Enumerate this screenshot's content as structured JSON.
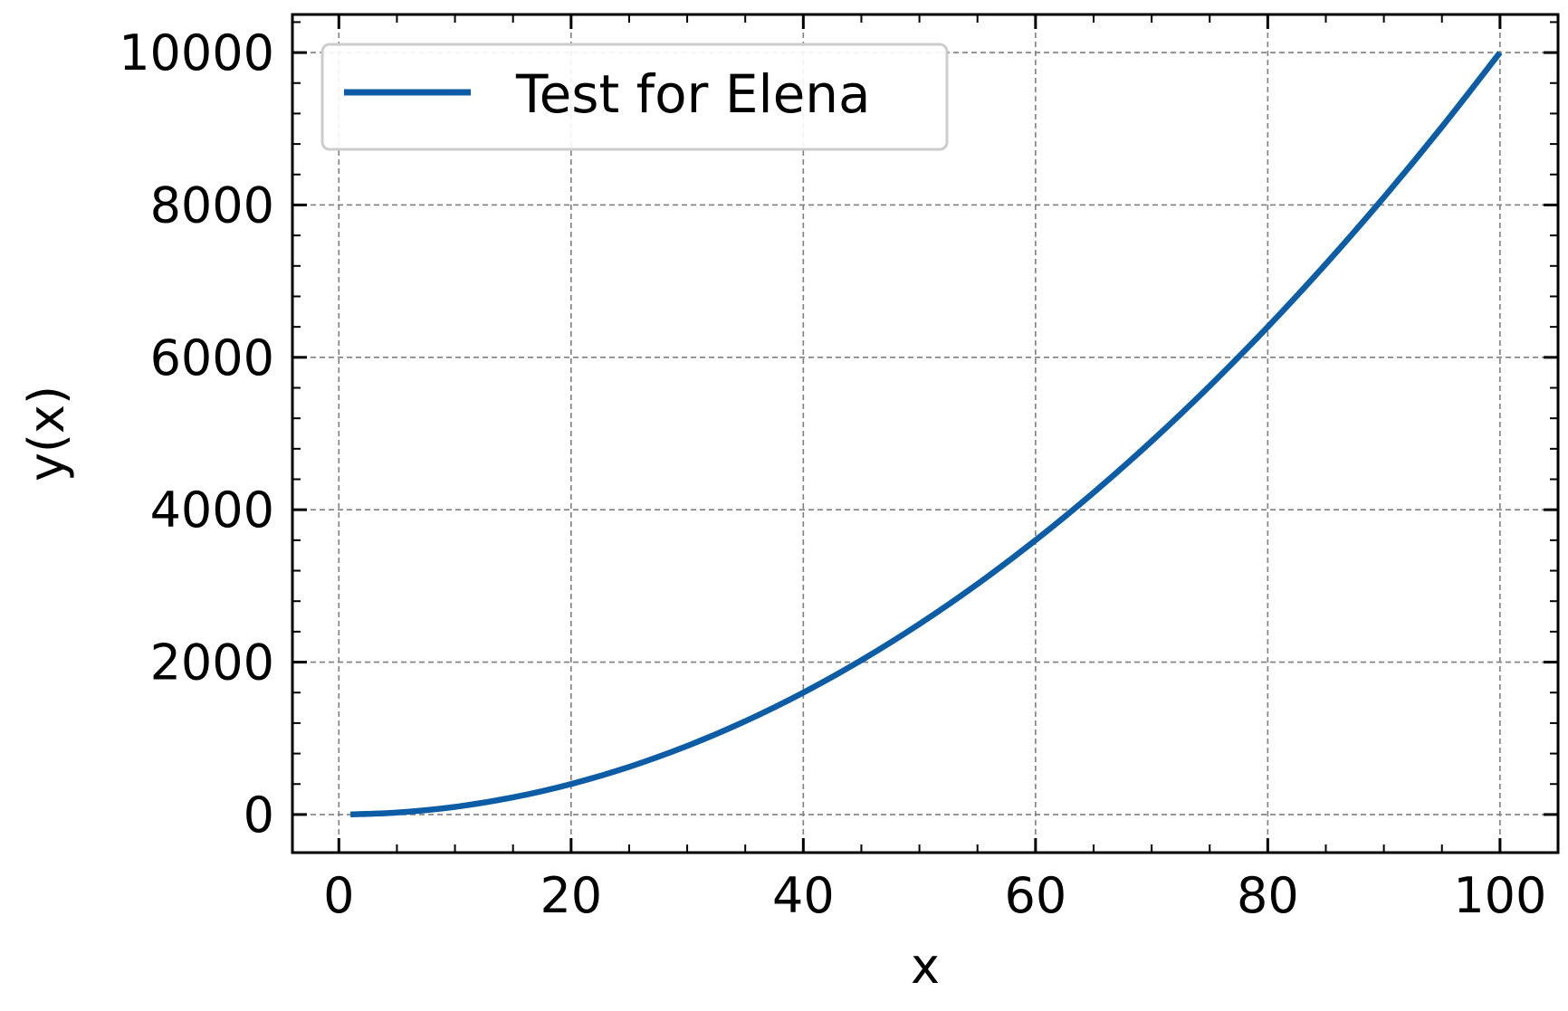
{
  "chart_data": {
    "type": "line",
    "title": "",
    "xlabel": "x",
    "ylabel": "y(x)",
    "xlim": [
      -4,
      105
    ],
    "ylim": [
      -500,
      10500
    ],
    "x_ticks": [
      0,
      20,
      40,
      60,
      80,
      100
    ],
    "y_ticks": [
      0,
      2000,
      4000,
      6000,
      8000,
      10000
    ],
    "x_tick_labels": [
      "0",
      "20",
      "40",
      "60",
      "80",
      "100"
    ],
    "y_tick_labels": [
      "0",
      "2000",
      "4000",
      "6000",
      "8000",
      "10000"
    ],
    "grid": true,
    "legend_position": "top-left",
    "series": [
      {
        "name": "Test for Elena",
        "color": "#0C5DA5",
        "x": [
          1,
          5,
          10,
          15,
          20,
          25,
          30,
          35,
          40,
          45,
          50,
          55,
          60,
          65,
          70,
          75,
          80,
          85,
          90,
          95,
          100
        ],
        "y": [
          1,
          25,
          100,
          225,
          400,
          625,
          900,
          1225,
          1600,
          2025,
          2500,
          3025,
          3600,
          4225,
          4900,
          5625,
          6400,
          7225,
          8100,
          9025,
          10000
        ]
      }
    ]
  }
}
